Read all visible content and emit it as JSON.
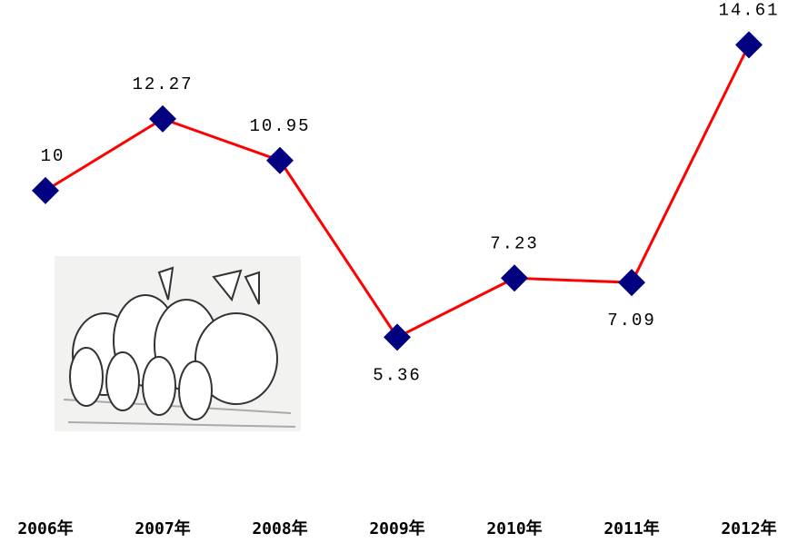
{
  "chart_data": {
    "type": "line",
    "categories": [
      "2006年",
      "2007年",
      "2008年",
      "2009年",
      "2010年",
      "2011年",
      "2012年"
    ],
    "series": [
      {
        "name": null,
        "color": "#ff0000",
        "marker_color": "#000080",
        "values": [
          10,
          12.27,
          10.95,
          5.36,
          7.23,
          7.09,
          14.61
        ]
      }
    ],
    "ylim": [
      0,
      16
    ],
    "grid": false
  }
}
